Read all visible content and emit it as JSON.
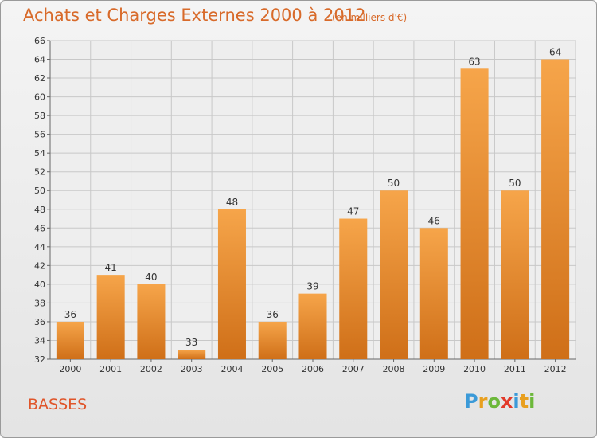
{
  "chart_data": {
    "type": "bar",
    "title": "Achats et Charges Externes 2000 à 2012",
    "subtitle": "(en milliers d'€)",
    "xlabel": "",
    "ylabel": "",
    "categories": [
      "2000",
      "2001",
      "2002",
      "2003",
      "2004",
      "2005",
      "2006",
      "2007",
      "2008",
      "2009",
      "2010",
      "2011",
      "2012"
    ],
    "values": [
      36,
      41,
      40,
      33,
      48,
      36,
      39,
      47,
      50,
      46,
      63,
      50,
      64
    ],
    "ylim": [
      32,
      66
    ],
    "ytick_step": 2,
    "grid": true,
    "bar_color_top": "#f6a54a",
    "bar_color_bottom": "#cf6f18"
  },
  "footer": {
    "commune": "BASSES",
    "logo_letters": [
      "P",
      "r",
      "o",
      "x",
      "i",
      "t",
      "i"
    ],
    "logo_colors": [
      "#3b9ad8",
      "#e8a020",
      "#6cb83a",
      "#e23a2a",
      "#3b9ad8",
      "#e8a020",
      "#6cb83a"
    ]
  }
}
